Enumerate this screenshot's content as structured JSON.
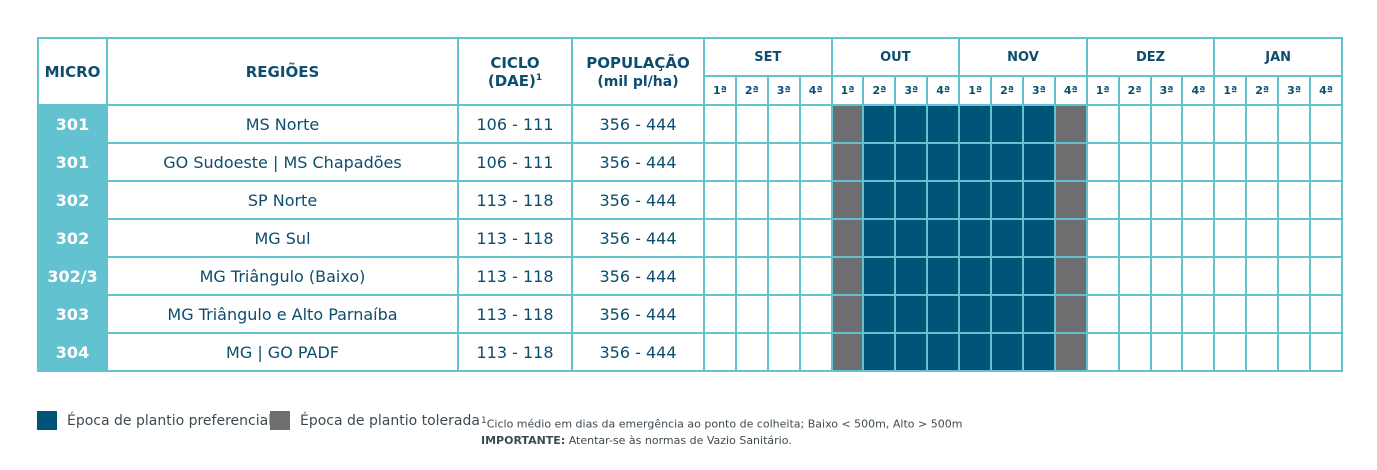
{
  "headers": {
    "micro": "MICRO",
    "regioes": "REGIÕES",
    "ciclo_line1": "CICLO",
    "ciclo_line2": "(DAE)",
    "ciclo_sup": "1",
    "populacao_line1": "POPULAÇÃO",
    "populacao_line2": "(mil pl/ha)"
  },
  "months": [
    "SET",
    "OUT",
    "NOV",
    "DEZ",
    "JAN"
  ],
  "weeks": [
    "1ª",
    "2ª",
    "3ª",
    "4ª"
  ],
  "rows": [
    {
      "micro": "301",
      "regiao": "MS Norte",
      "ciclo": "106 - 111",
      "populacao": "356 - 444"
    },
    {
      "micro": "301",
      "regiao": "GO Sudoeste | MS Chapadões",
      "ciclo": "106 - 111",
      "populacao": "356 - 444"
    },
    {
      "micro": "302",
      "regiao": "SP Norte",
      "ciclo": "113 - 118",
      "populacao": "356 - 444"
    },
    {
      "micro": "302",
      "regiao": "MG Sul",
      "ciclo": "113 - 118",
      "populacao": "356 - 444"
    },
    {
      "micro": "302/3",
      "regiao": "MG Triângulo (Baixo)",
      "ciclo": "113 - 118",
      "populacao": "356 - 444"
    },
    {
      "micro": "303",
      "regiao": "MG Triângulo e Alto Parnaíba",
      "ciclo": "113 - 118",
      "populacao": "356 - 444"
    },
    {
      "micro": "304",
      "regiao": "MG | GO PADF",
      "ciclo": "113 - 118",
      "populacao": "356 - 444"
    }
  ],
  "period_pattern": [
    "",
    "",
    "",
    "",
    "tolerada",
    "preferencial",
    "preferencial",
    "preferencial",
    "preferencial",
    "preferencial",
    "preferencial",
    "tolerada",
    "",
    "",
    "",
    "",
    "",
    "",
    "",
    ""
  ],
  "colors": {
    "preferencial": "#005478",
    "tolerada": "#6d6e70",
    "accent": "#62c2cf"
  },
  "legend": {
    "preferencial": "Época de plantio preferencial",
    "tolerada": "Época de plantio tolerada"
  },
  "notes": {
    "footnote_sup": "1",
    "footnote": "Ciclo médio em dias da emergência ao ponto de colheita; Baixo < 500m, Alto > 500m",
    "importante_label": "IMPORTANTE:",
    "importante_text": " Atentar-se às normas de Vazio Sanitário."
  }
}
